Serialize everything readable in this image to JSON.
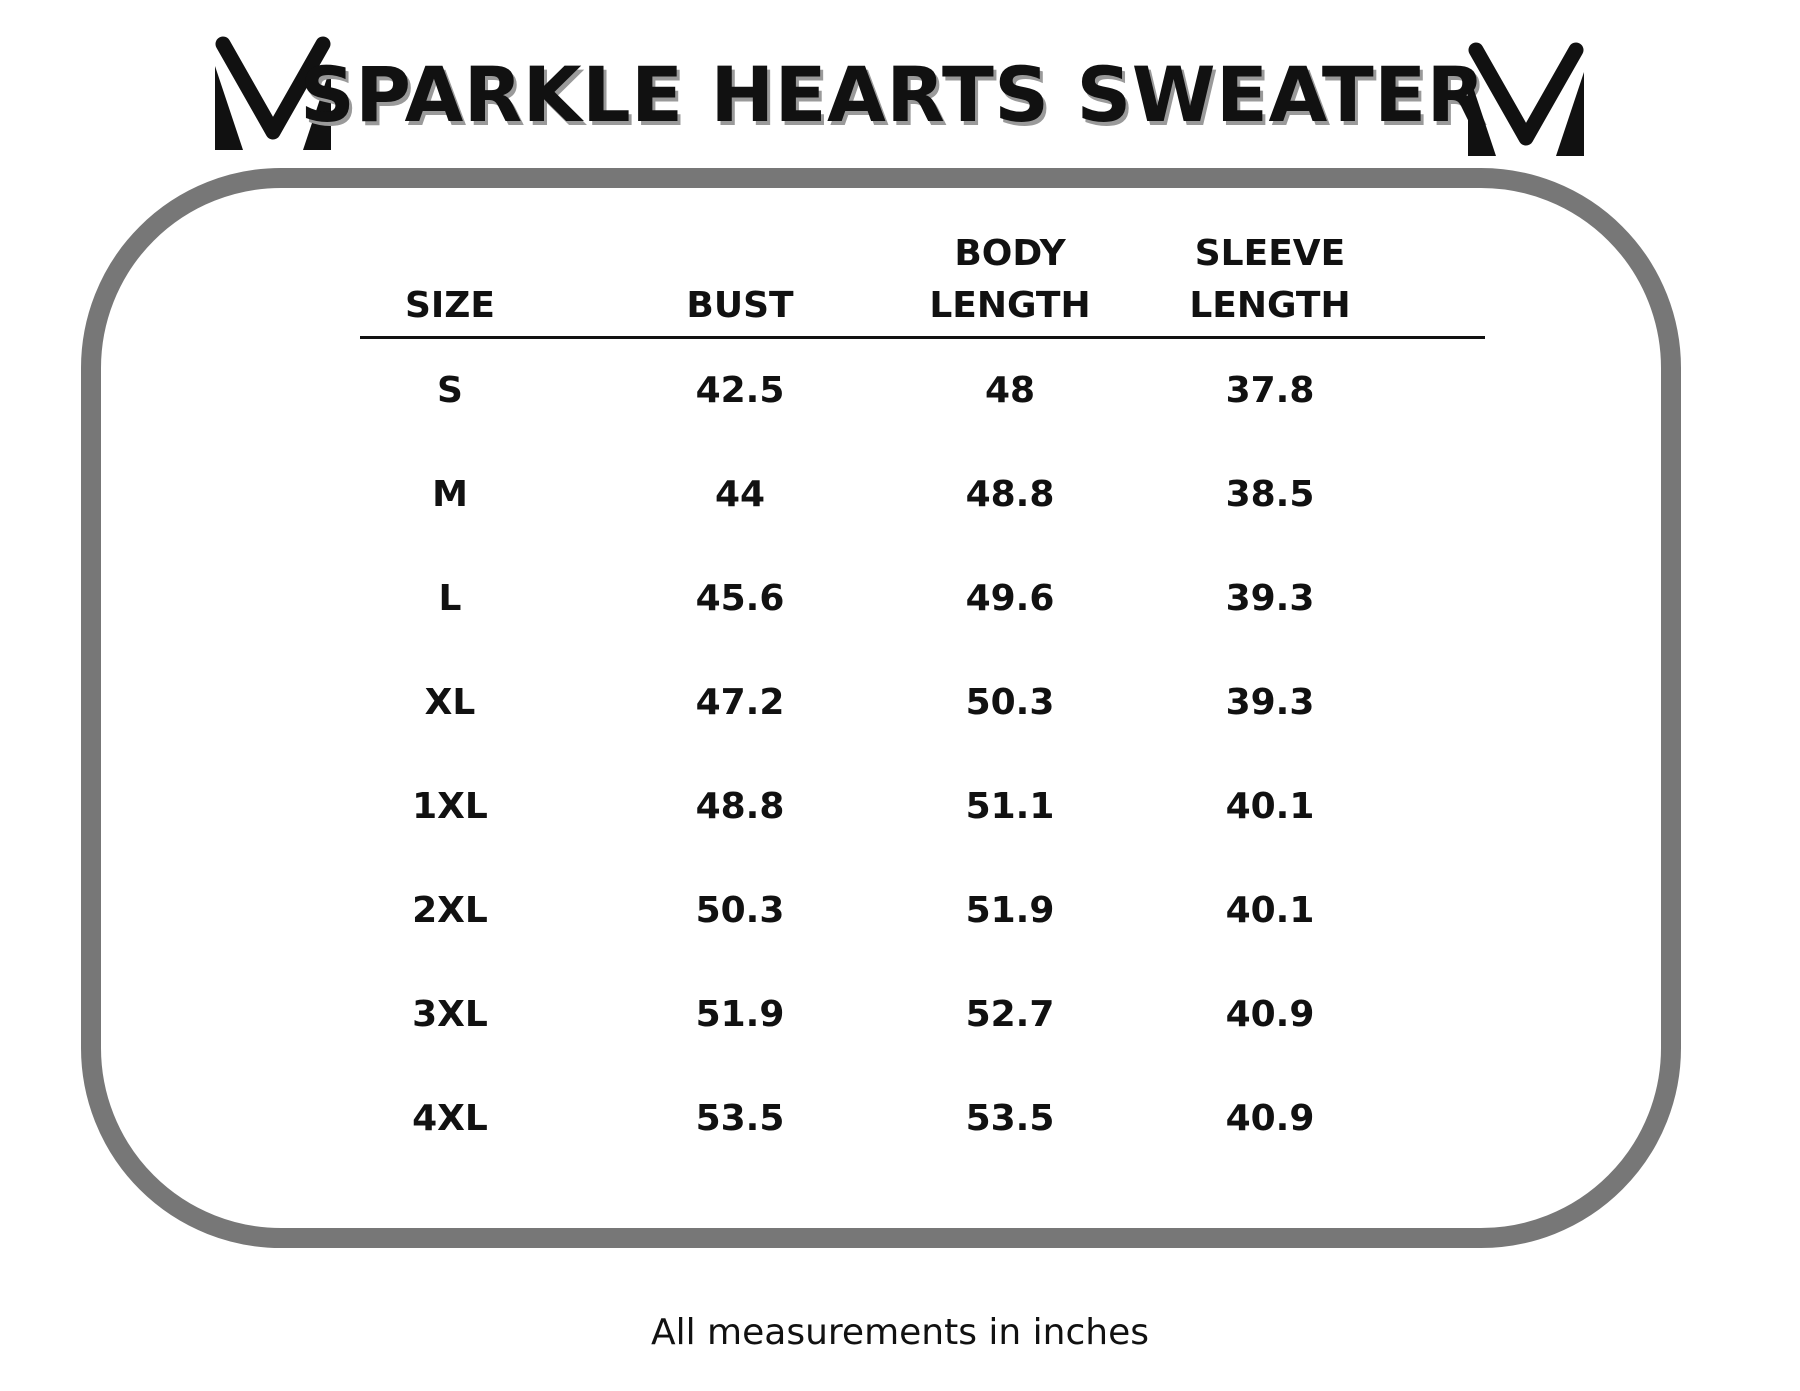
{
  "brand": {
    "logo_icon": "v-chevron-logo-icon",
    "logo_color": "#111111"
  },
  "title": "SPARKLE HEARTS SWEATER",
  "colors": {
    "frame_border": "#777777",
    "text": "#111111",
    "title_shadow": "#9a9a9a"
  },
  "table": {
    "headers": [
      "SIZE",
      "BUST",
      "BODY\nLENGTH",
      "SLEEVE\nLENGTH"
    ],
    "rows": [
      [
        "S",
        "42.5",
        "48",
        "37.8"
      ],
      [
        "M",
        "44",
        "48.8",
        "38.5"
      ],
      [
        "L",
        "45.6",
        "49.6",
        "39.3"
      ],
      [
        "XL",
        "47.2",
        "50.3",
        "39.3"
      ],
      [
        "1XL",
        "48.8",
        "51.1",
        "40.1"
      ],
      [
        "2XL",
        "50.3",
        "51.9",
        "40.1"
      ],
      [
        "3XL",
        "51.9",
        "52.7",
        "40.9"
      ],
      [
        "4XL",
        "53.5",
        "53.5",
        "40.9"
      ]
    ]
  },
  "footer": "All measurements in inches"
}
